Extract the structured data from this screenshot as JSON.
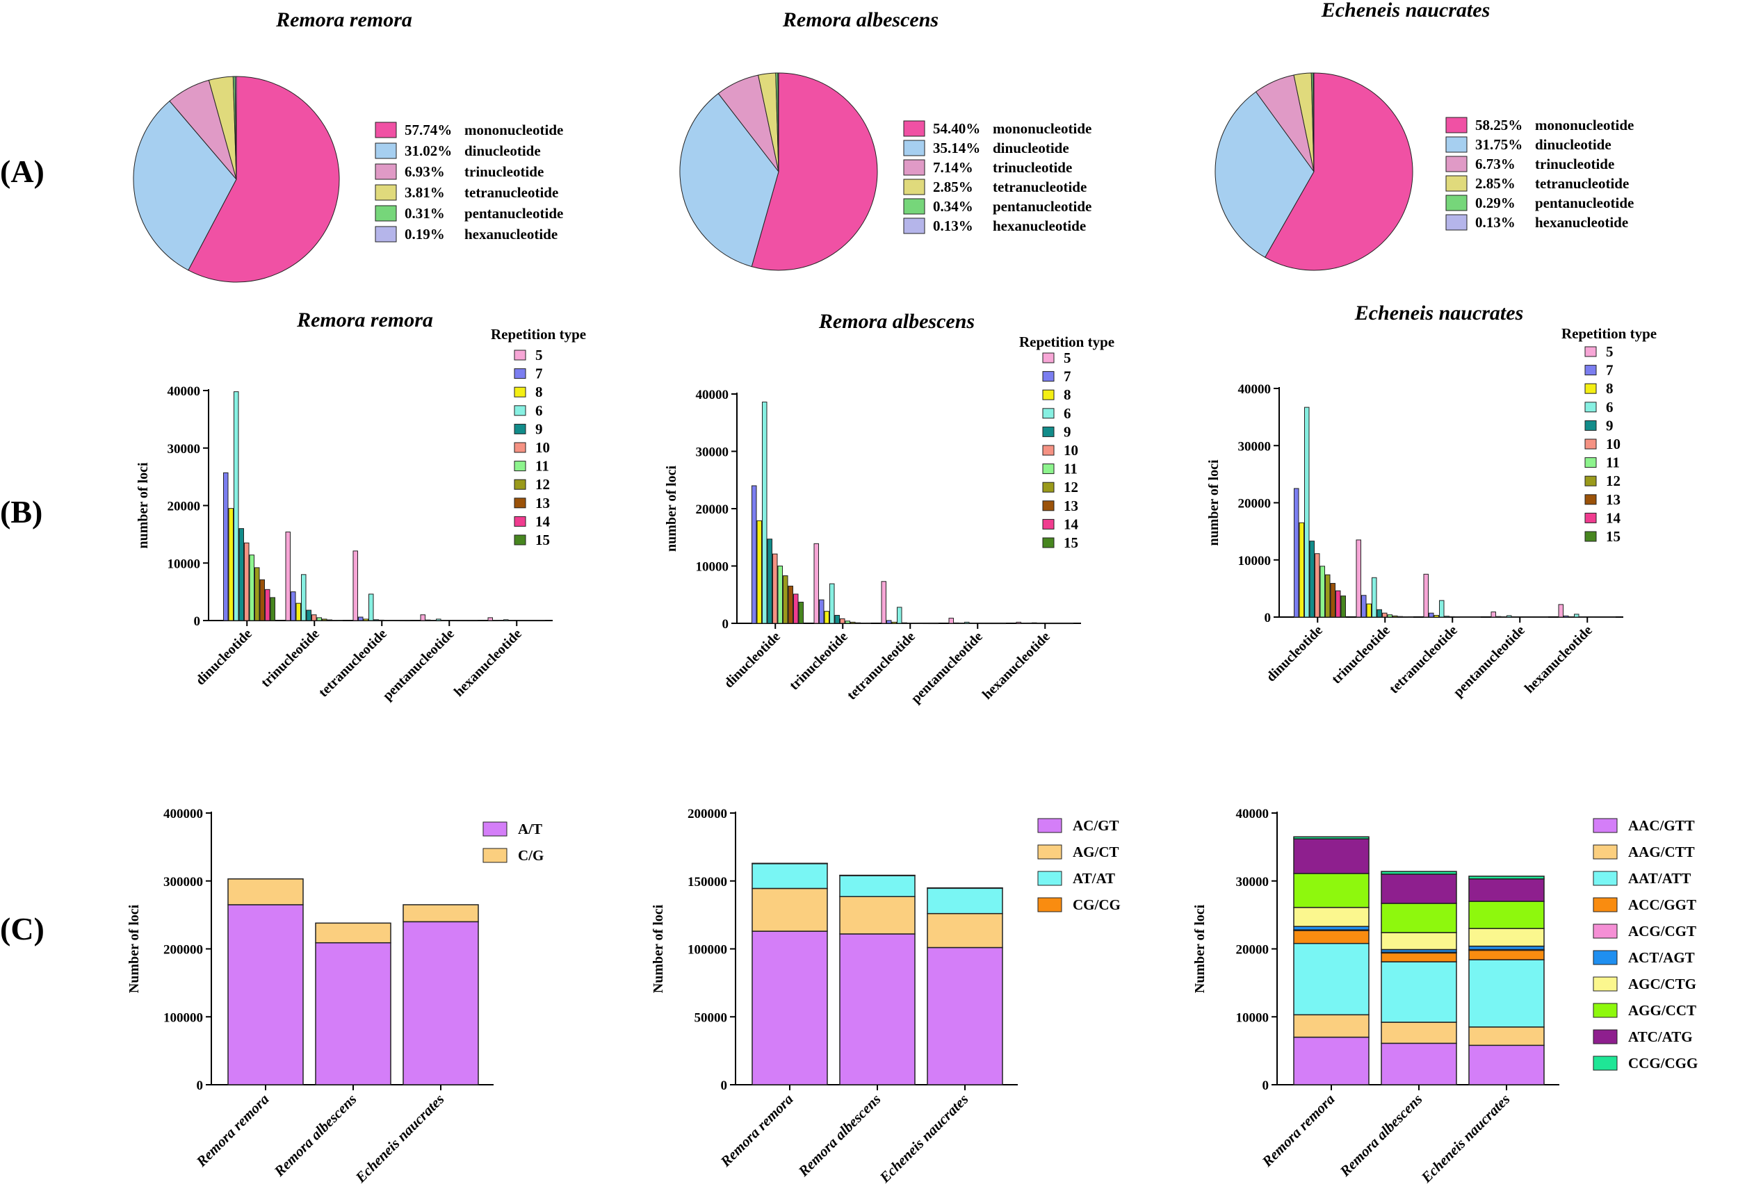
{
  "panel_labels": [
    "(A)",
    "(B)",
    "(C)"
  ],
  "colors": {
    "mono": "#f051a4",
    "di": "#a6cff0",
    "tri": "#e09ac6",
    "tetra": "#e0da7c",
    "penta": "#76d67a",
    "hexa": "#b5b5ea",
    "rep": [
      "#f7a6d6",
      "#7b7ef0",
      "#f4ef14",
      "#87f0e2",
      "#128c8a",
      "#f59283",
      "#8df48d",
      "#9a9a1b",
      "#9b5209",
      "#f03c8f",
      "#47861f"
    ],
    "c1": [
      "#d47ef8",
      "#fbcf7f"
    ],
    "c2": [
      "#d47ef8",
      "#fbcf7f",
      "#79f6f4",
      "#f98c10"
    ],
    "c3": [
      "#d47ef8",
      "#fbcf7f",
      "#79f6f4",
      "#f98c10",
      "#f58fd5",
      "#1f8ff0",
      "#fbf78e",
      "#8ef80d",
      "#8e1f8e",
      "#1fe696"
    ]
  },
  "chart_data": [
    {
      "panel": "A",
      "type": "pie",
      "title": "Remora remora",
      "labels": [
        "mononucleotide",
        "dinucleotide",
        "trinucleotide",
        "tetranucleotide",
        "pentanucleotide",
        "hexanucleotide"
      ],
      "pct_labels": [
        "57.74%",
        "31.02%",
        "6.93%",
        "3.81%",
        "0.31%",
        "0.19%"
      ],
      "values": [
        57.74,
        31.02,
        6.93,
        3.81,
        0.31,
        0.19
      ]
    },
    {
      "panel": "A",
      "type": "pie",
      "title": "Remora albescens",
      "labels": [
        "mononucleotide",
        "dinucleotide",
        "trinucleotide",
        "tetranucleotide",
        "pentanucleotide",
        "hexanucleotide"
      ],
      "pct_labels": [
        "54.40%",
        "35.14%",
        "7.14%",
        "2.85%",
        "0.34%",
        "0.13%"
      ],
      "values": [
        54.4,
        35.14,
        7.14,
        2.85,
        0.34,
        0.13
      ]
    },
    {
      "panel": "A",
      "type": "pie",
      "title": "Echeneis naucrates",
      "labels": [
        "mononucleotide",
        "dinucleotide",
        "trinucleotide",
        "tetranucleotide",
        "pentanucleotide",
        "hexanucleotide"
      ],
      "pct_labels": [
        "58.25%",
        "31.75%",
        "6.73%",
        "2.85%",
        "0.29%",
        "0.13%"
      ],
      "values": [
        58.25,
        31.75,
        6.73,
        2.85,
        0.29,
        0.13
      ]
    },
    {
      "panel": "B",
      "type": "bar",
      "title": "Remora remora",
      "ylabel": "number of loci",
      "ylim": [
        0,
        40000
      ],
      "yticks": [
        "0",
        "10000",
        "20000",
        "30000",
        "40000"
      ],
      "legend_title": "Repetition type",
      "legend_labels": [
        "5",
        "7",
        "8",
        "6",
        "9",
        "10",
        "11",
        "12",
        "13",
        "14",
        "15"
      ],
      "categories": [
        "dinucleotide",
        "trinucleotide",
        "tetranucleotide",
        "pentanucleotide",
        "hexanucleotide"
      ],
      "values": [
        [
          0,
          25700,
          19500,
          39800,
          16000,
          13500,
          11400,
          9200,
          7100,
          5400,
          4000
        ],
        [
          15400,
          5000,
          3000,
          8000,
          1800,
          1000,
          500,
          250,
          120,
          60,
          30
        ],
        [
          12100,
          600,
          250,
          4600,
          150,
          80,
          40,
          20,
          10,
          5,
          3
        ],
        [
          1000,
          100,
          40,
          250,
          20,
          10,
          5,
          3,
          2,
          1,
          1
        ],
        [
          500,
          60,
          20,
          150,
          10,
          5,
          3,
          2,
          1,
          1,
          1
        ]
      ]
    },
    {
      "panel": "B",
      "type": "bar",
      "title": "Remora albescens",
      "ylabel": "number of loci",
      "ylim": [
        0,
        40000
      ],
      "yticks": [
        "0",
        "10000",
        "20000",
        "30000",
        "40000"
      ],
      "legend_title": "Repetition type",
      "legend_labels": [
        "5",
        "7",
        "8",
        "6",
        "9",
        "10",
        "11",
        "12",
        "13",
        "14",
        "15"
      ],
      "categories": [
        "dinucleotide",
        "trinucleotide",
        "tetranucleotide",
        "pentanucleotide",
        "hexanucleotide"
      ],
      "values": [
        [
          0,
          24000,
          17900,
          38600,
          14700,
          12100,
          10000,
          8300,
          6500,
          5100,
          3700
        ],
        [
          13900,
          4100,
          2100,
          6900,
          1400,
          800,
          400,
          200,
          100,
          50,
          30
        ],
        [
          7300,
          500,
          200,
          2800,
          100,
          60,
          30,
          15,
          8,
          4,
          2
        ],
        [
          900,
          80,
          30,
          200,
          15,
          8,
          4,
          2,
          1,
          1,
          1
        ],
        [
          200,
          40,
          10,
          100,
          5,
          3,
          2,
          1,
          1,
          1,
          1
        ]
      ]
    },
    {
      "panel": "B",
      "type": "bar",
      "title": "Echeneis naucrates",
      "ylabel": "number of loci",
      "ylim": [
        0,
        40000
      ],
      "yticks": [
        "0",
        "10000",
        "20000",
        "30000",
        "40000"
      ],
      "legend_title": "Repetition type",
      "legend_labels": [
        "5",
        "7",
        "8",
        "6",
        "9",
        "10",
        "11",
        "12",
        "13",
        "14",
        "15"
      ],
      "categories": [
        "dinucleotide",
        "trinucleotide",
        "tetranucleotide",
        "pentanucleotide",
        "hexanucleotide"
      ],
      "values": [
        [
          0,
          22500,
          16500,
          36700,
          13300,
          11100,
          8900,
          7400,
          5900,
          4600,
          3700
        ],
        [
          13500,
          3800,
          2300,
          6900,
          1300,
          700,
          400,
          200,
          100,
          50,
          30
        ],
        [
          7500,
          700,
          300,
          2900,
          150,
          80,
          40,
          20,
          10,
          5,
          3
        ],
        [
          900,
          100,
          40,
          250,
          20,
          10,
          5,
          3,
          2,
          1,
          1
        ],
        [
          2200,
          200,
          60,
          500,
          30,
          15,
          8,
          4,
          2,
          1,
          1
        ]
      ]
    },
    {
      "panel": "C",
      "type": "bar",
      "stacked": true,
      "ylabel": "Number of loci",
      "ylim": [
        0,
        400000
      ],
      "yticks": [
        "0",
        "100000",
        "200000",
        "300000",
        "400000"
      ],
      "categories": [
        "Remora remora",
        "Remora albescens",
        "Echeneis naucrates"
      ],
      "series": [
        {
          "name": "A/T",
          "values": [
            265000,
            209000,
            240000
          ]
        },
        {
          "name": "C/G",
          "values": [
            38000,
            29000,
            25000
          ]
        }
      ]
    },
    {
      "panel": "C",
      "type": "bar",
      "stacked": true,
      "ylabel": "Number of loci",
      "ylim": [
        0,
        200000
      ],
      "yticks": [
        "0",
        "50000",
        "100000",
        "150000",
        "200000"
      ],
      "categories": [
        "Remora remora",
        "Remora albescens",
        "Echeneis naucrates"
      ],
      "series": [
        {
          "name": "AC/GT",
          "values": [
            113000,
            111000,
            101000
          ]
        },
        {
          "name": "AG/CT",
          "values": [
            31500,
            27500,
            25000
          ]
        },
        {
          "name": "AT/AT",
          "values": [
            18300,
            15500,
            18700
          ]
        },
        {
          "name": "CG/CG",
          "values": [
            200,
            200,
            200
          ]
        }
      ]
    },
    {
      "panel": "C",
      "type": "bar",
      "stacked": true,
      "ylabel": "Number of loci",
      "ylim": [
        0,
        40000
      ],
      "yticks": [
        "0",
        "10000",
        "20000",
        "30000",
        "40000"
      ],
      "categories": [
        "Remora remora",
        "Remora albescens",
        "Echeneis naucrates"
      ],
      "series": [
        {
          "name": "AAC/GTT",
          "values": [
            7000,
            6100,
            5800
          ]
        },
        {
          "name": "AAG/CTT",
          "values": [
            3300,
            3100,
            2700
          ]
        },
        {
          "name": "AAT/ATT",
          "values": [
            10500,
            8900,
            9900
          ]
        },
        {
          "name": "ACC/GGT",
          "values": [
            1900,
            1300,
            1400
          ]
        },
        {
          "name": "ACG/CGT",
          "values": [
            100,
            100,
            100
          ]
        },
        {
          "name": "ACT/AGT",
          "values": [
            500,
            400,
            500
          ]
        },
        {
          "name": "AGC/CTG",
          "values": [
            2800,
            2500,
            2600
          ]
        },
        {
          "name": "AGG/CCT",
          "values": [
            5000,
            4300,
            4000
          ]
        },
        {
          "name": "ATC/ATG",
          "values": [
            5100,
            4300,
            3300
          ]
        },
        {
          "name": "CCG/CGG",
          "values": [
            300,
            400,
            400
          ]
        }
      ]
    }
  ]
}
